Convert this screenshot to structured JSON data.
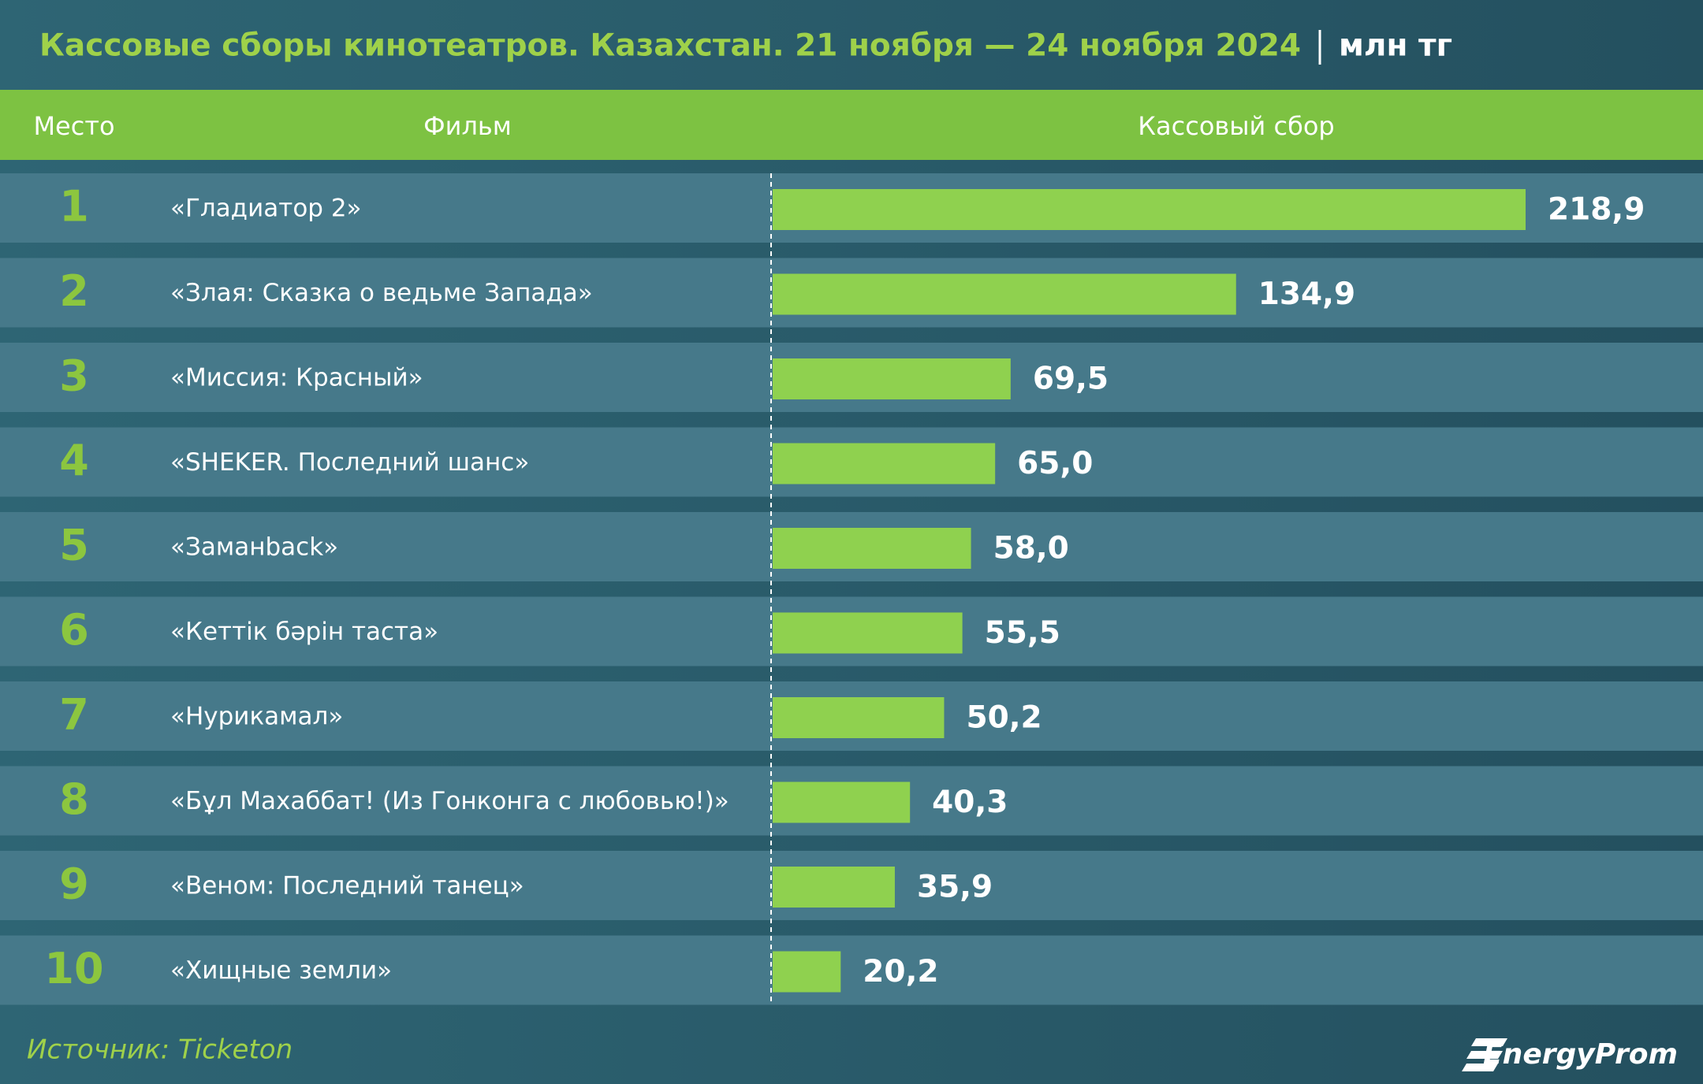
{
  "chart_data": {
    "type": "bar",
    "title": "Кассовые сборы кинотеатров. Казахстан. 21 ноября — 24 ноября 2024",
    "unit": "млн тг",
    "columns": [
      "Место",
      "Фильм",
      "Кассовый сбор"
    ],
    "ranks": [
      1,
      2,
      3,
      4,
      5,
      6,
      7,
      8,
      9,
      10
    ],
    "categories": [
      "«Гладиатор 2»",
      "«Злая: Сказка о ведьме Запада»",
      "«Миссия: Красный»",
      "«SHEKER. Последний шанс»",
      "«Заманback»",
      "«Кеттік бәрін таста»",
      "«Нурикамал»",
      "«Бұл Махаббат! (Из Гонконга с любовью!)»",
      "«Веном: Последний танец»",
      "«Хищные земли»"
    ],
    "values": [
      218.9,
      134.9,
      69.5,
      65.0,
      58.0,
      55.5,
      50.2,
      40.3,
      35.9,
      20.2
    ],
    "value_labels": [
      "218,9",
      "134,9",
      "69,5",
      "65,0",
      "58,0",
      "55,5",
      "50,2",
      "40,3",
      "35,9",
      "20,2"
    ],
    "color": "#8fd14f",
    "source": "Источник: Ticketon",
    "logo": "EnergyProm"
  }
}
